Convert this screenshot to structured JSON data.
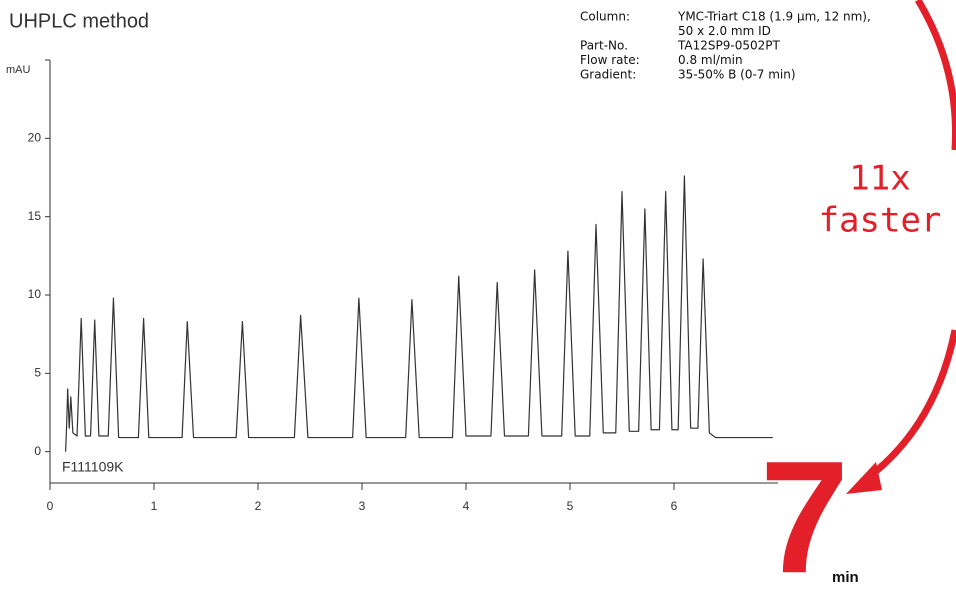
{
  "chart_data": {
    "type": "line",
    "title": "UHPLC method",
    "ylabel": "mAU",
    "annotation": "F111109K",
    "info": [
      {
        "label": "Column:",
        "lines": [
          "YMC-Triart C18 (1.9 µm, 12 nm),",
          "50 x 2.0 mm ID"
        ]
      },
      {
        "label": "Part-No.",
        "lines": [
          "TA12SP9-0502PT"
        ]
      },
      {
        "label": "Flow rate:",
        "lines": [
          "0.8 ml/min"
        ]
      },
      {
        "label": "Gradient:",
        "lines": [
          "35-50% B (0-7 min)"
        ]
      }
    ],
    "callout": [
      "11x",
      "faster"
    ],
    "time_value": "7",
    "time_unit": "min",
    "color": "#333333",
    "x": [
      0.15,
      0.16,
      0.17,
      0.185,
      0.2,
      0.22,
      0.26,
      0.3,
      0.34,
      0.39,
      0.43,
      0.47,
      0.56,
      0.61,
      0.66,
      0.85,
      0.9,
      0.95,
      1.27,
      1.32,
      1.38,
      1.79,
      1.85,
      1.91,
      2.35,
      2.41,
      2.48,
      2.91,
      2.97,
      3.04,
      3.42,
      3.48,
      3.55,
      3.87,
      3.93,
      4.0,
      4.24,
      4.3,
      4.37,
      4.6,
      4.66,
      4.73,
      4.92,
      4.98,
      5.05,
      5.19,
      5.25,
      5.32,
      5.44,
      5.5,
      5.57,
      5.66,
      5.72,
      5.78,
      5.86,
      5.92,
      5.98,
      6.04,
      6.1,
      6.16,
      6.23,
      6.28,
      6.34,
      6.4,
      6.95
    ],
    "values": [
      0,
      1.7,
      4,
      1.5,
      3.5,
      1.2,
      1,
      8.5,
      1,
      1,
      8.4,
      1,
      1,
      9.8,
      0.9,
      0.9,
      8.5,
      0.9,
      0.9,
      8.3,
      0.9,
      0.9,
      8.3,
      0.9,
      0.9,
      8.7,
      0.9,
      0.9,
      9.8,
      0.9,
      0.9,
      9.7,
      0.9,
      0.9,
      11.2,
      1,
      1,
      10.8,
      1,
      1,
      11.6,
      1,
      1,
      12.8,
      1,
      1,
      14.5,
      1.2,
      1.2,
      16.6,
      1.3,
      1.3,
      15.5,
      1.4,
      1.4,
      16.6,
      1.4,
      1.4,
      17.6,
      1.5,
      1.5,
      12.3,
      1.2,
      0.9,
      0.9
    ],
    "xlim": [
      0,
      7
    ],
    "xticks": [
      0,
      1,
      2,
      3,
      4,
      5,
      6
    ],
    "ylim": [
      -2,
      25
    ],
    "yticks": [
      0,
      5,
      10,
      15,
      20
    ]
  }
}
